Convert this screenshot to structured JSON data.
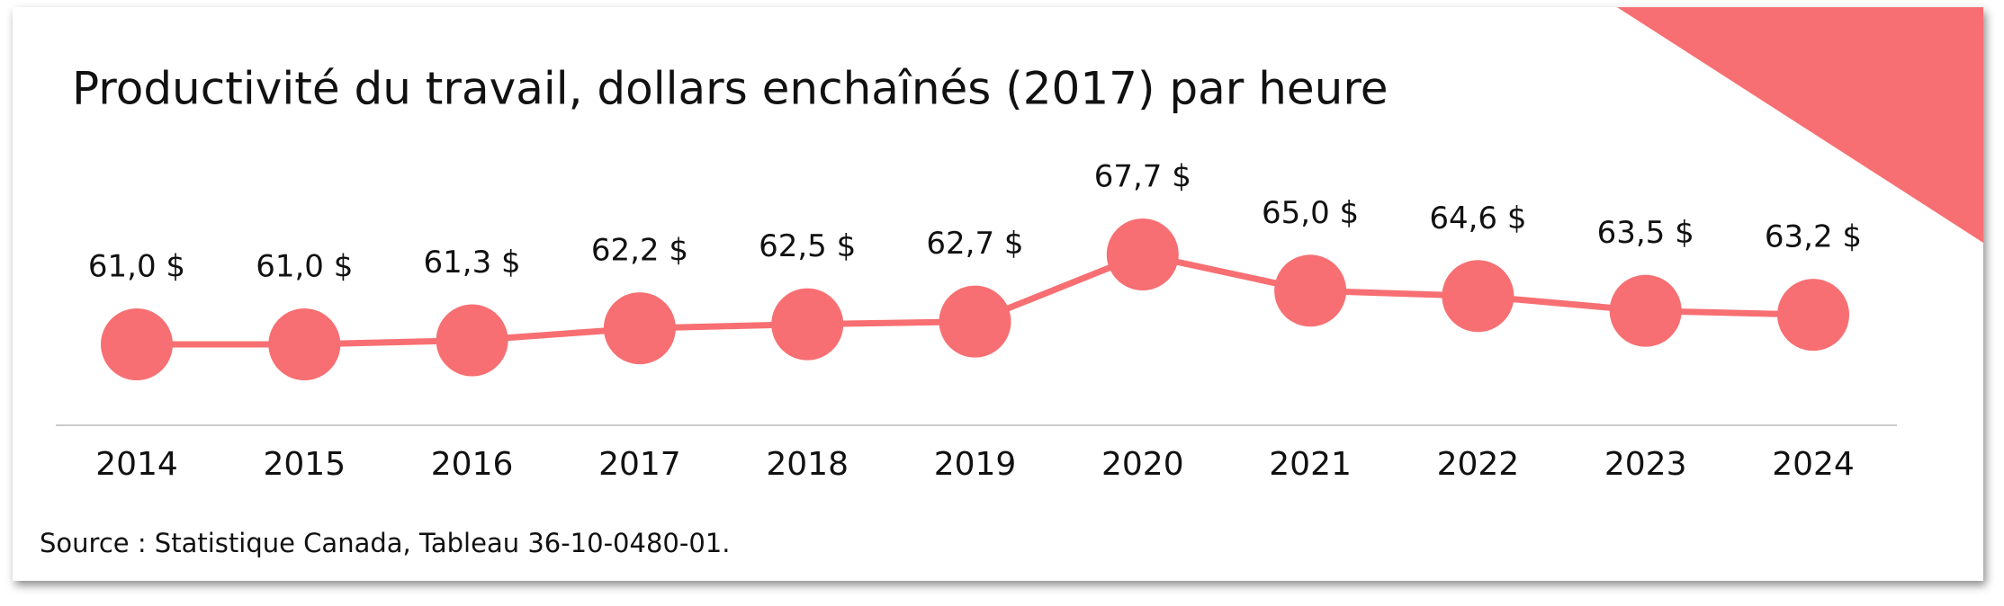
{
  "chart_data": {
    "type": "line",
    "title": "Productivité du travail, dollars enchaînés (2017) par heure",
    "source": "Source : Statistique Canada, Tableau 36-10-0480-01.",
    "categories": [
      "2014",
      "2015",
      "2016",
      "2017",
      "2018",
      "2019",
      "2020",
      "2021",
      "2022",
      "2023",
      "2024"
    ],
    "values": [
      61.0,
      61.0,
      61.3,
      62.2,
      62.5,
      62.7,
      67.7,
      65.0,
      64.6,
      63.5,
      63.2
    ],
    "value_labels": [
      "61,0 $",
      "61,0 $",
      "61,3 $",
      "62,2 $",
      "62,5 $",
      "62,7 $",
      "67,7 $",
      "65,0 $",
      "64,6 $",
      "63,5 $",
      "63,2 $"
    ],
    "color": "#f76f72"
  }
}
